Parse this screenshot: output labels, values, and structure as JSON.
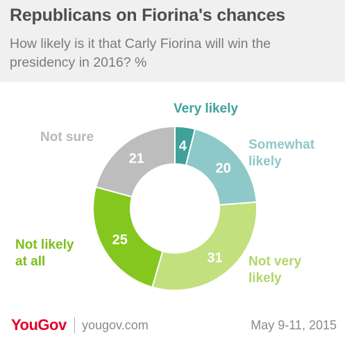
{
  "header": {
    "title": "Republicans on Fiorina's chances",
    "subtitle": "How likely is it that Carly Fiorina will win the presidency in 2016? %"
  },
  "chart_data": {
    "type": "pie",
    "donut": true,
    "title": "Republicans on Fiorina's chances",
    "subtitle": "How likely is it that Carly Fiorina will win the presidency in 2016? %",
    "slices": [
      {
        "label_lines": [
          "Very likely"
        ],
        "value": 4,
        "color": "#3fa19c",
        "label_color": "#3fa19c"
      },
      {
        "label_lines": [
          "Somewhat",
          "likely"
        ],
        "value": 20,
        "color": "#8ec8c9",
        "label_color": "#8ec8c9"
      },
      {
        "label_lines": [
          "Not very",
          "likely"
        ],
        "value": 31,
        "color": "#c2e07e",
        "label_color": "#b3d66a"
      },
      {
        "label_lines": [
          "Not likely",
          "at all"
        ],
        "value": 25,
        "color": "#84c81f",
        "label_color": "#7bbf1a"
      },
      {
        "label_lines": [
          "Not sure"
        ],
        "value": 21,
        "color": "#bdbdbd",
        "label_color": "#b8b8b8"
      }
    ]
  },
  "footer": {
    "brand": "YouGov",
    "site": "yougov.com",
    "date": "May 9-11, 2015"
  }
}
